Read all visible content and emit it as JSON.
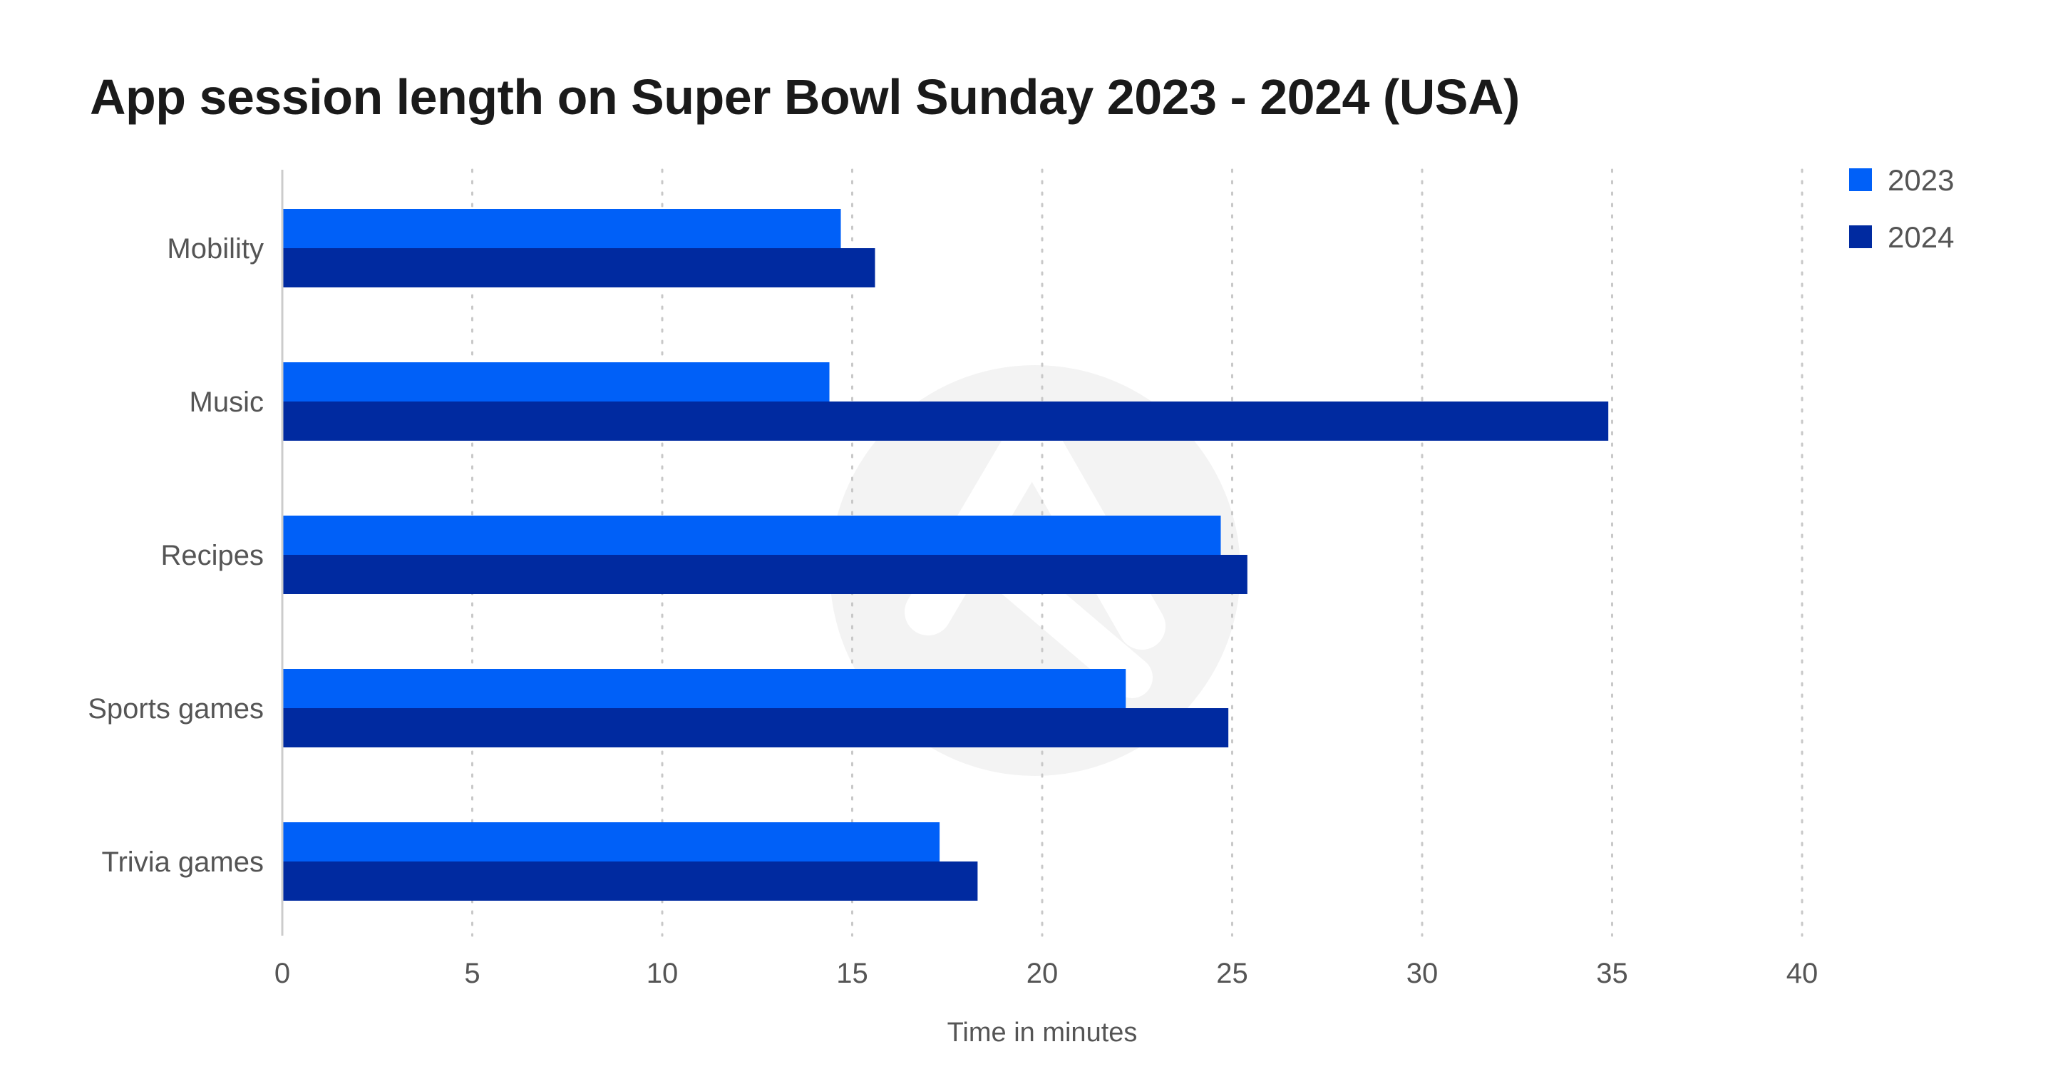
{
  "chart_data": {
    "type": "bar",
    "orientation": "horizontal",
    "title": "App session length on Super Bowl Sunday 2023 - 2024 (USA)",
    "xlabel": "Time in minutes",
    "ylabel": "",
    "xlim": [
      0,
      40
    ],
    "xticks": [
      0,
      5,
      10,
      15,
      20,
      25,
      30,
      35,
      40
    ],
    "grid": "vertical-dotted",
    "legend_position": "top-right",
    "categories": [
      "Mobility",
      "Music",
      "Recipes",
      "Sports games",
      "Trivia games"
    ],
    "series": [
      {
        "name": "2023",
        "color": "#0060F8",
        "values": [
          14.7,
          14.4,
          24.7,
          22.2,
          17.3
        ]
      },
      {
        "name": "2024",
        "color": "#002AA0",
        "values": [
          15.6,
          34.9,
          25.4,
          24.9,
          18.3
        ]
      }
    ]
  },
  "colors": {
    "text_dark": "#1a1a1a",
    "text_muted": "#555555",
    "axis": "#cccccc",
    "grid": "#c8c8c8",
    "watermark": "#f3f3f3"
  }
}
